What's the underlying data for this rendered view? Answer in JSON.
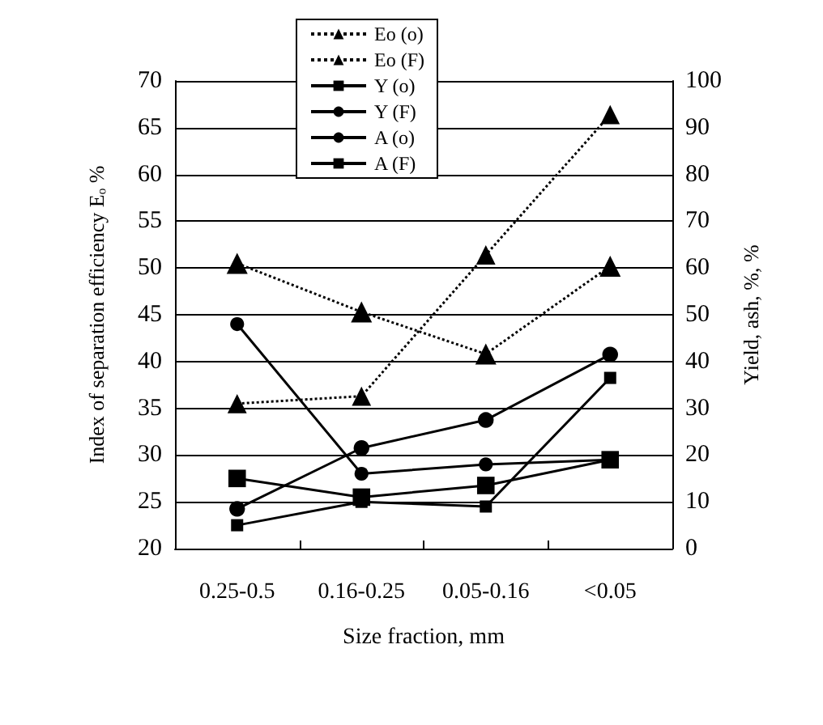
{
  "chart_data": {
    "type": "line",
    "xlabel": "Size fraction, mm",
    "ylabel": "Index of separation efficiency Eₒ %",
    "y2label": "Yield, ash, %, %",
    "categories": [
      "0.25-0.5",
      "0.16-0.25",
      "0.05-0.16",
      "<0.05"
    ],
    "series": [
      {
        "name": "Eo (o)",
        "color": "#000000",
        "marker": "triangle",
        "line_style": "dotted",
        "values": [
          50.5,
          45.3,
          40.8,
          50.2
        ]
      },
      {
        "name": "Eo (F)",
        "color": "#000000",
        "marker": "triangle",
        "line_style": "dotted",
        "values": [
          35.5,
          36.3,
          51.4,
          66.4
        ]
      },
      {
        "name": "Y (o)",
        "color": "#000000",
        "marker": "square",
        "line_style": "solid",
        "axis": "y2",
        "values": [
          15,
          11,
          13.5,
          19
        ]
      },
      {
        "name": "Y (F)",
        "color": "#000000",
        "marker": "circle",
        "line_style": "solid",
        "axis": "y2",
        "values": [
          8.5,
          21.5,
          27.5,
          41.5
        ]
      },
      {
        "name": "A (o)",
        "color": "#000000",
        "marker": "circle",
        "line_style": "solid",
        "axis": "y2",
        "values": [
          48,
          16,
          18,
          19
        ]
      },
      {
        "name": "A (F)",
        "color": "#000000",
        "marker": "square",
        "line_style": "solid",
        "axis": "y2",
        "values": [
          5,
          10,
          9,
          36.5
        ]
      }
    ],
    "ylim": [
      20,
      70
    ],
    "yticks": [
      20,
      25,
      30,
      35,
      40,
      45,
      50,
      55,
      60,
      65,
      70
    ],
    "y2lim": [
      0,
      100
    ],
    "y2ticks": [
      0,
      10,
      20,
      30,
      40,
      50,
      60,
      70,
      80,
      90,
      100
    ],
    "grid": "y",
    "legend": "top"
  }
}
